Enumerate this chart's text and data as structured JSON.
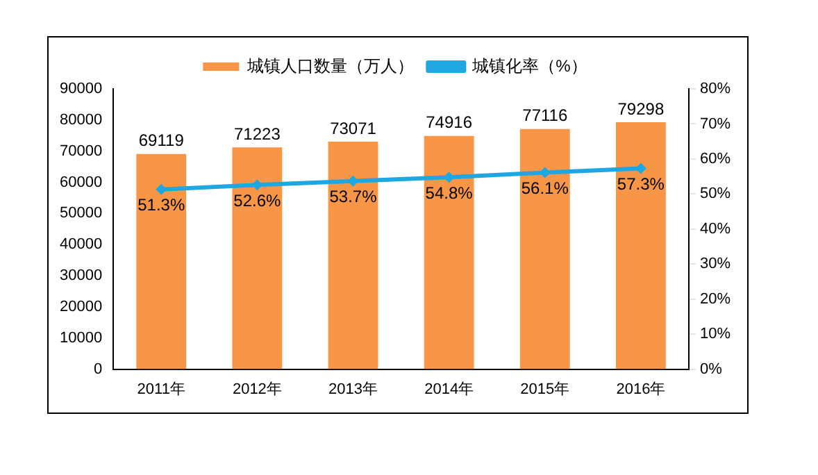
{
  "chart_data": {
    "type": "bar",
    "categories": [
      "2011年",
      "2012年",
      "2013年",
      "2014年",
      "2015年",
      "2016年"
    ],
    "series": [
      {
        "name": "城镇人口数量（万人）",
        "color": "#f79646",
        "values": [
          69119,
          71223,
          73071,
          74916,
          77116,
          79298
        ],
        "value_labels": [
          "69119",
          "71223",
          "73071",
          "74916",
          "77116",
          "79298"
        ]
      },
      {
        "name": "城镇化率（%）",
        "type": "line",
        "axis": "y2",
        "color": "#1ea7e1",
        "values": [
          51.3,
          52.6,
          53.7,
          54.8,
          56.1,
          57.3
        ],
        "value_labels": [
          "51.3%",
          "52.6%",
          "53.7%",
          "54.8%",
          "56.1%",
          "57.3%"
        ]
      }
    ],
    "ylim": [
      0,
      90000
    ],
    "yticks": [
      0,
      10000,
      20000,
      30000,
      40000,
      50000,
      60000,
      70000,
      80000,
      90000
    ],
    "y2lim": [
      0,
      80
    ],
    "y2ticks": [
      {
        "value": 0,
        "label": "0%"
      },
      {
        "value": 10,
        "label": "10%"
      },
      {
        "value": 20,
        "label": "20%"
      },
      {
        "value": 30,
        "label": "30%"
      },
      {
        "value": 40,
        "label": "40%"
      },
      {
        "value": 50,
        "label": "50%"
      },
      {
        "value": 60,
        "label": "60%"
      },
      {
        "value": 70,
        "label": "70%"
      },
      {
        "value": 80,
        "label": "80%"
      }
    ],
    "grid": false,
    "legend": "top",
    "marker": "diamond",
    "line_style": "solid"
  }
}
